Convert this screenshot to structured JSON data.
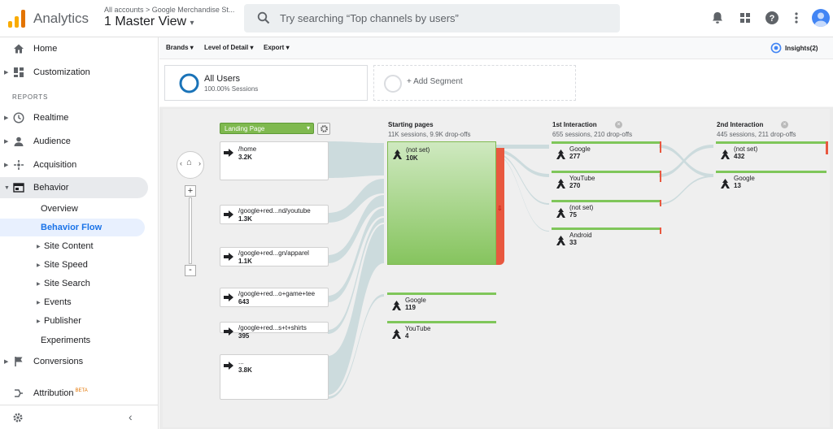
{
  "header": {
    "app_name": "Analytics",
    "account_crumb": "All accounts > Google Merchandise St...",
    "view_name": "1 Master View",
    "search_placeholder": "Try searching “Top channels by users”",
    "icons": [
      "notifications-icon",
      "apps-grid-icon",
      "help-icon",
      "more-vert-icon",
      "account-avatar-icon"
    ]
  },
  "sidebar": {
    "home": "Home",
    "customization": "Customization",
    "reports_heading": "REPORTS",
    "realtime": "Realtime",
    "audience": "Audience",
    "acquisition": "Acquisition",
    "behavior": "Behavior",
    "behavior_sub": {
      "overview": "Overview",
      "behavior_flow": "Behavior Flow",
      "site_content": "Site Content",
      "site_speed": "Site Speed",
      "site_search": "Site Search",
      "events": "Events",
      "publisher": "Publisher",
      "experiments": "Experiments"
    },
    "conversions": "Conversions",
    "attribution": "Attribution",
    "attribution_badge": "BETA"
  },
  "toolbar": {
    "brands": "Brands",
    "level_of_detail": "Level of Detail",
    "export": "Export",
    "insights": "Insights(2)"
  },
  "segments": {
    "seg1_name": "All Users",
    "seg1_sessions": "100.00% Sessions",
    "add_segment": "+ Add Segment"
  },
  "flow": {
    "dimension_select": "Landing Page",
    "landing_pages": [
      {
        "label": "/home",
        "value": "3.2K"
      },
      {
        "label": "/google+red...nd/youtube",
        "value": "1.3K"
      },
      {
        "label": "/google+red...gn/apparel",
        "value": "1.1K"
      },
      {
        "label": "/google+red...o+game+tee",
        "value": "643"
      },
      {
        "label": "/google+red...s+t+shirts",
        "value": "395"
      },
      {
        "label": "...",
        "value": "3.8K"
      }
    ],
    "starting": {
      "title": "Starting pages",
      "subtitle": "11K sessions, 9.9K drop-offs",
      "nodes": [
        {
          "label": "(not set)",
          "value": "10K"
        },
        {
          "label": "Google",
          "value": "119"
        },
        {
          "label": "YouTube",
          "value": "4"
        }
      ]
    },
    "first": {
      "title": "1st Interaction",
      "subtitle": "655 sessions, 210 drop-offs",
      "nodes": [
        {
          "label": "Google",
          "value": "277"
        },
        {
          "label": "YouTube",
          "value": "270"
        },
        {
          "label": "(not set)",
          "value": "75"
        },
        {
          "label": "Android",
          "value": "33"
        }
      ]
    },
    "second": {
      "title": "2nd Interaction",
      "subtitle": "445 sessions, 211 drop-offs",
      "nodes": [
        {
          "label": "(not set)",
          "value": "432"
        },
        {
          "label": "Google",
          "value": "13"
        }
      ]
    }
  }
}
